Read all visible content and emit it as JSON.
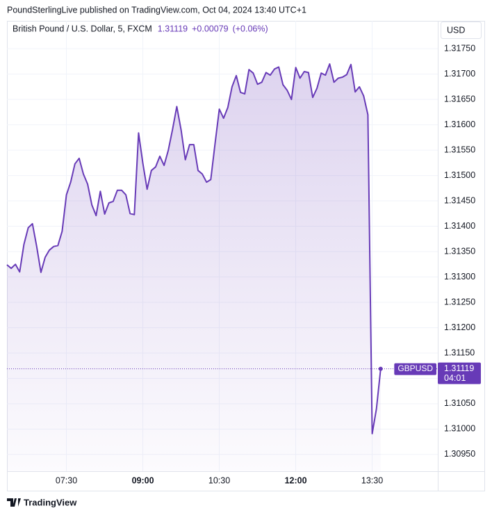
{
  "publisher": "PoundSterlingLive published on TradingView.com, Oct 04, 2024 13:40 UTC+1",
  "change": "+0.00079",
  "change_percent": "(+0.06%)",
  "currency": "USD",
  "countdown": "04:01",
  "brand": "TradingView",
  "chart_data": {
    "type": "line",
    "title": "British Pound / U.S. Dollar, 5, FXCM",
    "categories": [
      null,
      null,
      null,
      null,
      null,
      null,
      null,
      null,
      null,
      null,
      null,
      null,
      null,
      null,
      "07:30",
      null,
      null,
      null,
      null,
      null,
      null,
      null,
      null,
      null,
      null,
      null,
      null,
      null,
      null,
      null,
      null,
      null,
      "09:00",
      null,
      null,
      null,
      null,
      null,
      null,
      null,
      null,
      null,
      null,
      null,
      null,
      null,
      null,
      null,
      null,
      null,
      "10:30",
      null,
      null,
      null,
      null,
      null,
      null,
      null,
      null,
      null,
      null,
      null,
      null,
      null,
      null,
      null,
      null,
      null,
      "12:00",
      null,
      null,
      null,
      null,
      null,
      null,
      null,
      null,
      null,
      null,
      null,
      null,
      null,
      null,
      null,
      null,
      null,
      "13:30",
      null,
      null
    ],
    "series": [
      {
        "name": "GBPUSD",
        "color": "#673ab7",
        "values": [
          1.31324,
          1.31317,
          1.31325,
          1.3131,
          1.31364,
          1.31397,
          1.31405,
          1.3136,
          1.31309,
          1.31339,
          1.31353,
          1.3136,
          1.31362,
          1.3139,
          1.31462,
          1.31487,
          1.31523,
          1.31534,
          1.31503,
          1.31483,
          1.31442,
          1.31421,
          1.31469,
          1.31424,
          1.31446,
          1.31449,
          1.31471,
          1.31471,
          1.31462,
          1.31425,
          1.31423,
          1.31584,
          1.31524,
          1.31473,
          1.3151,
          1.31517,
          1.31538,
          1.3152,
          1.3155,
          1.31591,
          1.31636,
          1.3159,
          1.31531,
          1.31561,
          1.31561,
          1.3151,
          1.31503,
          1.31487,
          1.31492,
          1.31562,
          1.31631,
          1.31613,
          1.31634,
          1.31675,
          1.31697,
          1.31664,
          1.31661,
          1.31709,
          1.31702,
          1.3168,
          1.31684,
          1.31703,
          1.31698,
          1.3171,
          1.31714,
          1.31679,
          1.31668,
          1.3165,
          1.31713,
          1.31692,
          1.31705,
          1.31703,
          1.31654,
          1.31672,
          1.31702,
          1.31698,
          1.3172,
          1.31684,
          1.31692,
          1.31694,
          1.31699,
          1.31719,
          1.31665,
          1.31675,
          1.31657,
          1.3162,
          1.30991,
          1.3104,
          1.31119
        ]
      }
    ],
    "ylim": [
      1.30917,
      1.31805
    ],
    "yticks": [
      {
        "value": 1.3095,
        "label": "1.30950"
      },
      {
        "value": 1.31,
        "label": "1.31000"
      },
      {
        "value": 1.3105,
        "label": "1.31050"
      },
      {
        "value": 1.311,
        "label": "1.31100"
      },
      {
        "value": 1.3115,
        "label": "1.31150"
      },
      {
        "value": 1.312,
        "label": "1.31200"
      },
      {
        "value": 1.3125,
        "label": "1.31250"
      },
      {
        "value": 1.313,
        "label": "1.31300"
      },
      {
        "value": 1.3135,
        "label": "1.31350"
      },
      {
        "value": 1.314,
        "label": "1.31400"
      },
      {
        "value": 1.3145,
        "label": "1.31450"
      },
      {
        "value": 1.315,
        "label": "1.31500"
      },
      {
        "value": 1.3155,
        "label": "1.31550"
      },
      {
        "value": 1.316,
        "label": "1.31600"
      },
      {
        "value": 1.3165,
        "label": "1.31650"
      },
      {
        "value": 1.317,
        "label": "1.31700"
      },
      {
        "value": 1.3175,
        "label": "1.31750"
      }
    ],
    "grid": true
  }
}
